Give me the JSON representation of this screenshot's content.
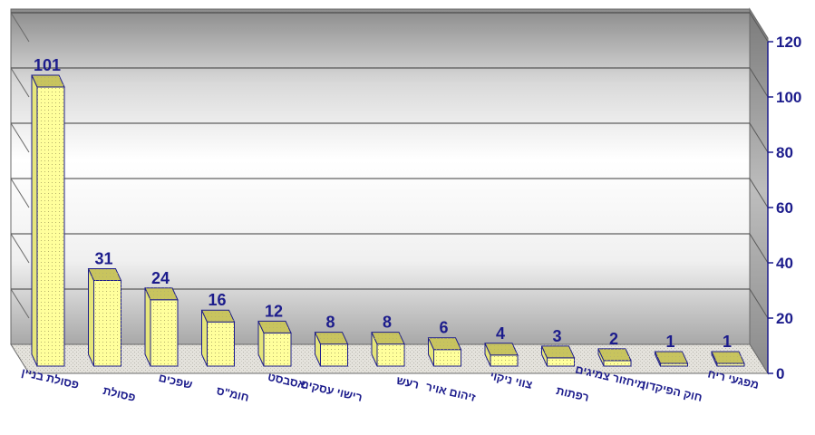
{
  "chart_data": {
    "type": "bar",
    "categories": [
      "פסולת בניין",
      "פסולת",
      "שפכים",
      "חומ\"ס",
      "אסבסט",
      "רישוי עסקים",
      "רעש",
      "זיהום אויר",
      "צווי ניקוי",
      "רפתות",
      "מיחזור צמיגים",
      "חוק הפיקדון",
      "מפגעי ריח"
    ],
    "values": [
      101,
      31,
      24,
      16,
      12,
      8,
      8,
      6,
      4,
      3,
      2,
      1,
      1
    ],
    "y_ticks": [
      "0",
      "20",
      "40",
      "60",
      "80",
      "100",
      "120"
    ],
    "ylim": [
      0,
      120
    ],
    "grid": true,
    "legend": "none",
    "colors": {
      "bar_front": "#ffff9c",
      "bar_side": "#e6e67a",
      "bar_top": "#c8c45e",
      "bar_outline": "#1c1c8c",
      "text": "#1c1c8c"
    }
  }
}
